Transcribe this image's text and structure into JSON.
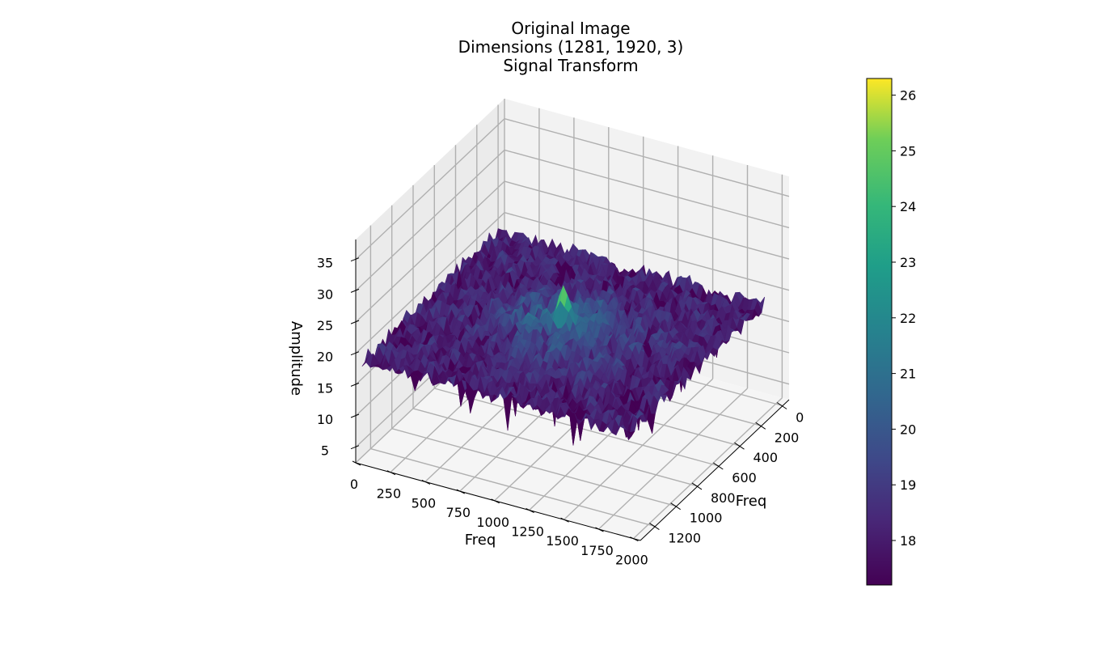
{
  "chart_data": {
    "type": "surface",
    "title": "Original Image",
    "subtitle_lines": [
      "Dimensions (1281, 1920, 3)",
      "Signal Transform"
    ],
    "xlabel": "Freq",
    "ylabel": "Freq",
    "zlabel": "Amplitude",
    "x_ticks": [
      0,
      250,
      500,
      750,
      1000,
      1250,
      1500,
      1750,
      2000
    ],
    "y_ticks": [
      0,
      200,
      400,
      600,
      800,
      1000,
      1200
    ],
    "z_ticks": [
      5,
      10,
      15,
      20,
      25,
      30,
      35
    ],
    "x_range": [
      0,
      1920
    ],
    "y_range": [
      0,
      1281
    ],
    "zlim": [
      5,
      37
    ],
    "surface": {
      "baseline_amplitude": 18,
      "peak_amplitude": 26.3,
      "peak_x": 960,
      "peak_y": 640
    },
    "colormap": "viridis",
    "colorbar": {
      "min": 17.2,
      "max": 26.3,
      "ticks": [
        18,
        19,
        20,
        21,
        22,
        23,
        24,
        25,
        26
      ]
    },
    "grid": true
  }
}
